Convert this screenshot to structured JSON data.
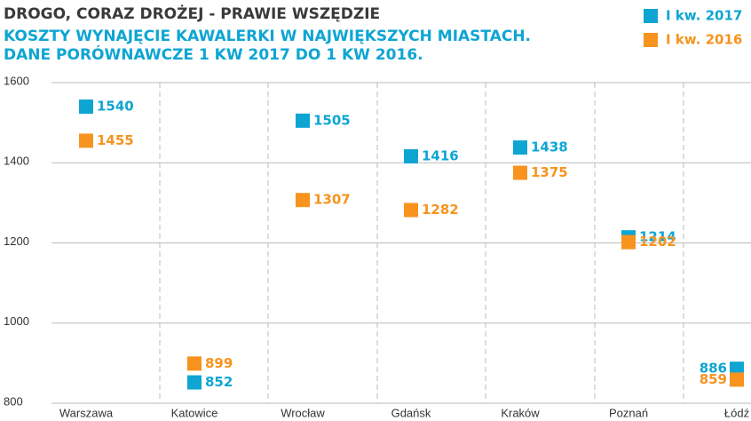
{
  "chart_data": {
    "type": "dot",
    "title": "DROGO, CORAZ DROŻEJ - PRAWIE WSZĘDZIE",
    "subtitle": [
      "KOSZTY WYNAJĘCIE KAWALERKI W NAJWIĘKSZYCH MIASTACH.",
      "DANE PORÓWNAWCZE 1 KW 2017 DO 1 KW 2016."
    ],
    "categories": [
      "Warszawa",
      "Katowice",
      "Wrocław",
      "Gdańsk",
      "Kraków",
      "Poznań",
      "Łódź"
    ],
    "series": [
      {
        "name": "I kw. 2017",
        "color": "#0ea5d3",
        "values": [
          1540,
          852,
          1505,
          1416,
          1438,
          1214,
          886
        ]
      },
      {
        "name": "I kw. 2016",
        "color": "#f7931e",
        "values": [
          1455,
          899,
          1307,
          1282,
          1375,
          1202,
          859
        ]
      }
    ],
    "ylim": [
      800,
      1600
    ],
    "yticks": [
      800,
      1000,
      1200,
      1400,
      1600
    ],
    "grid": true,
    "legend": "top-right"
  }
}
